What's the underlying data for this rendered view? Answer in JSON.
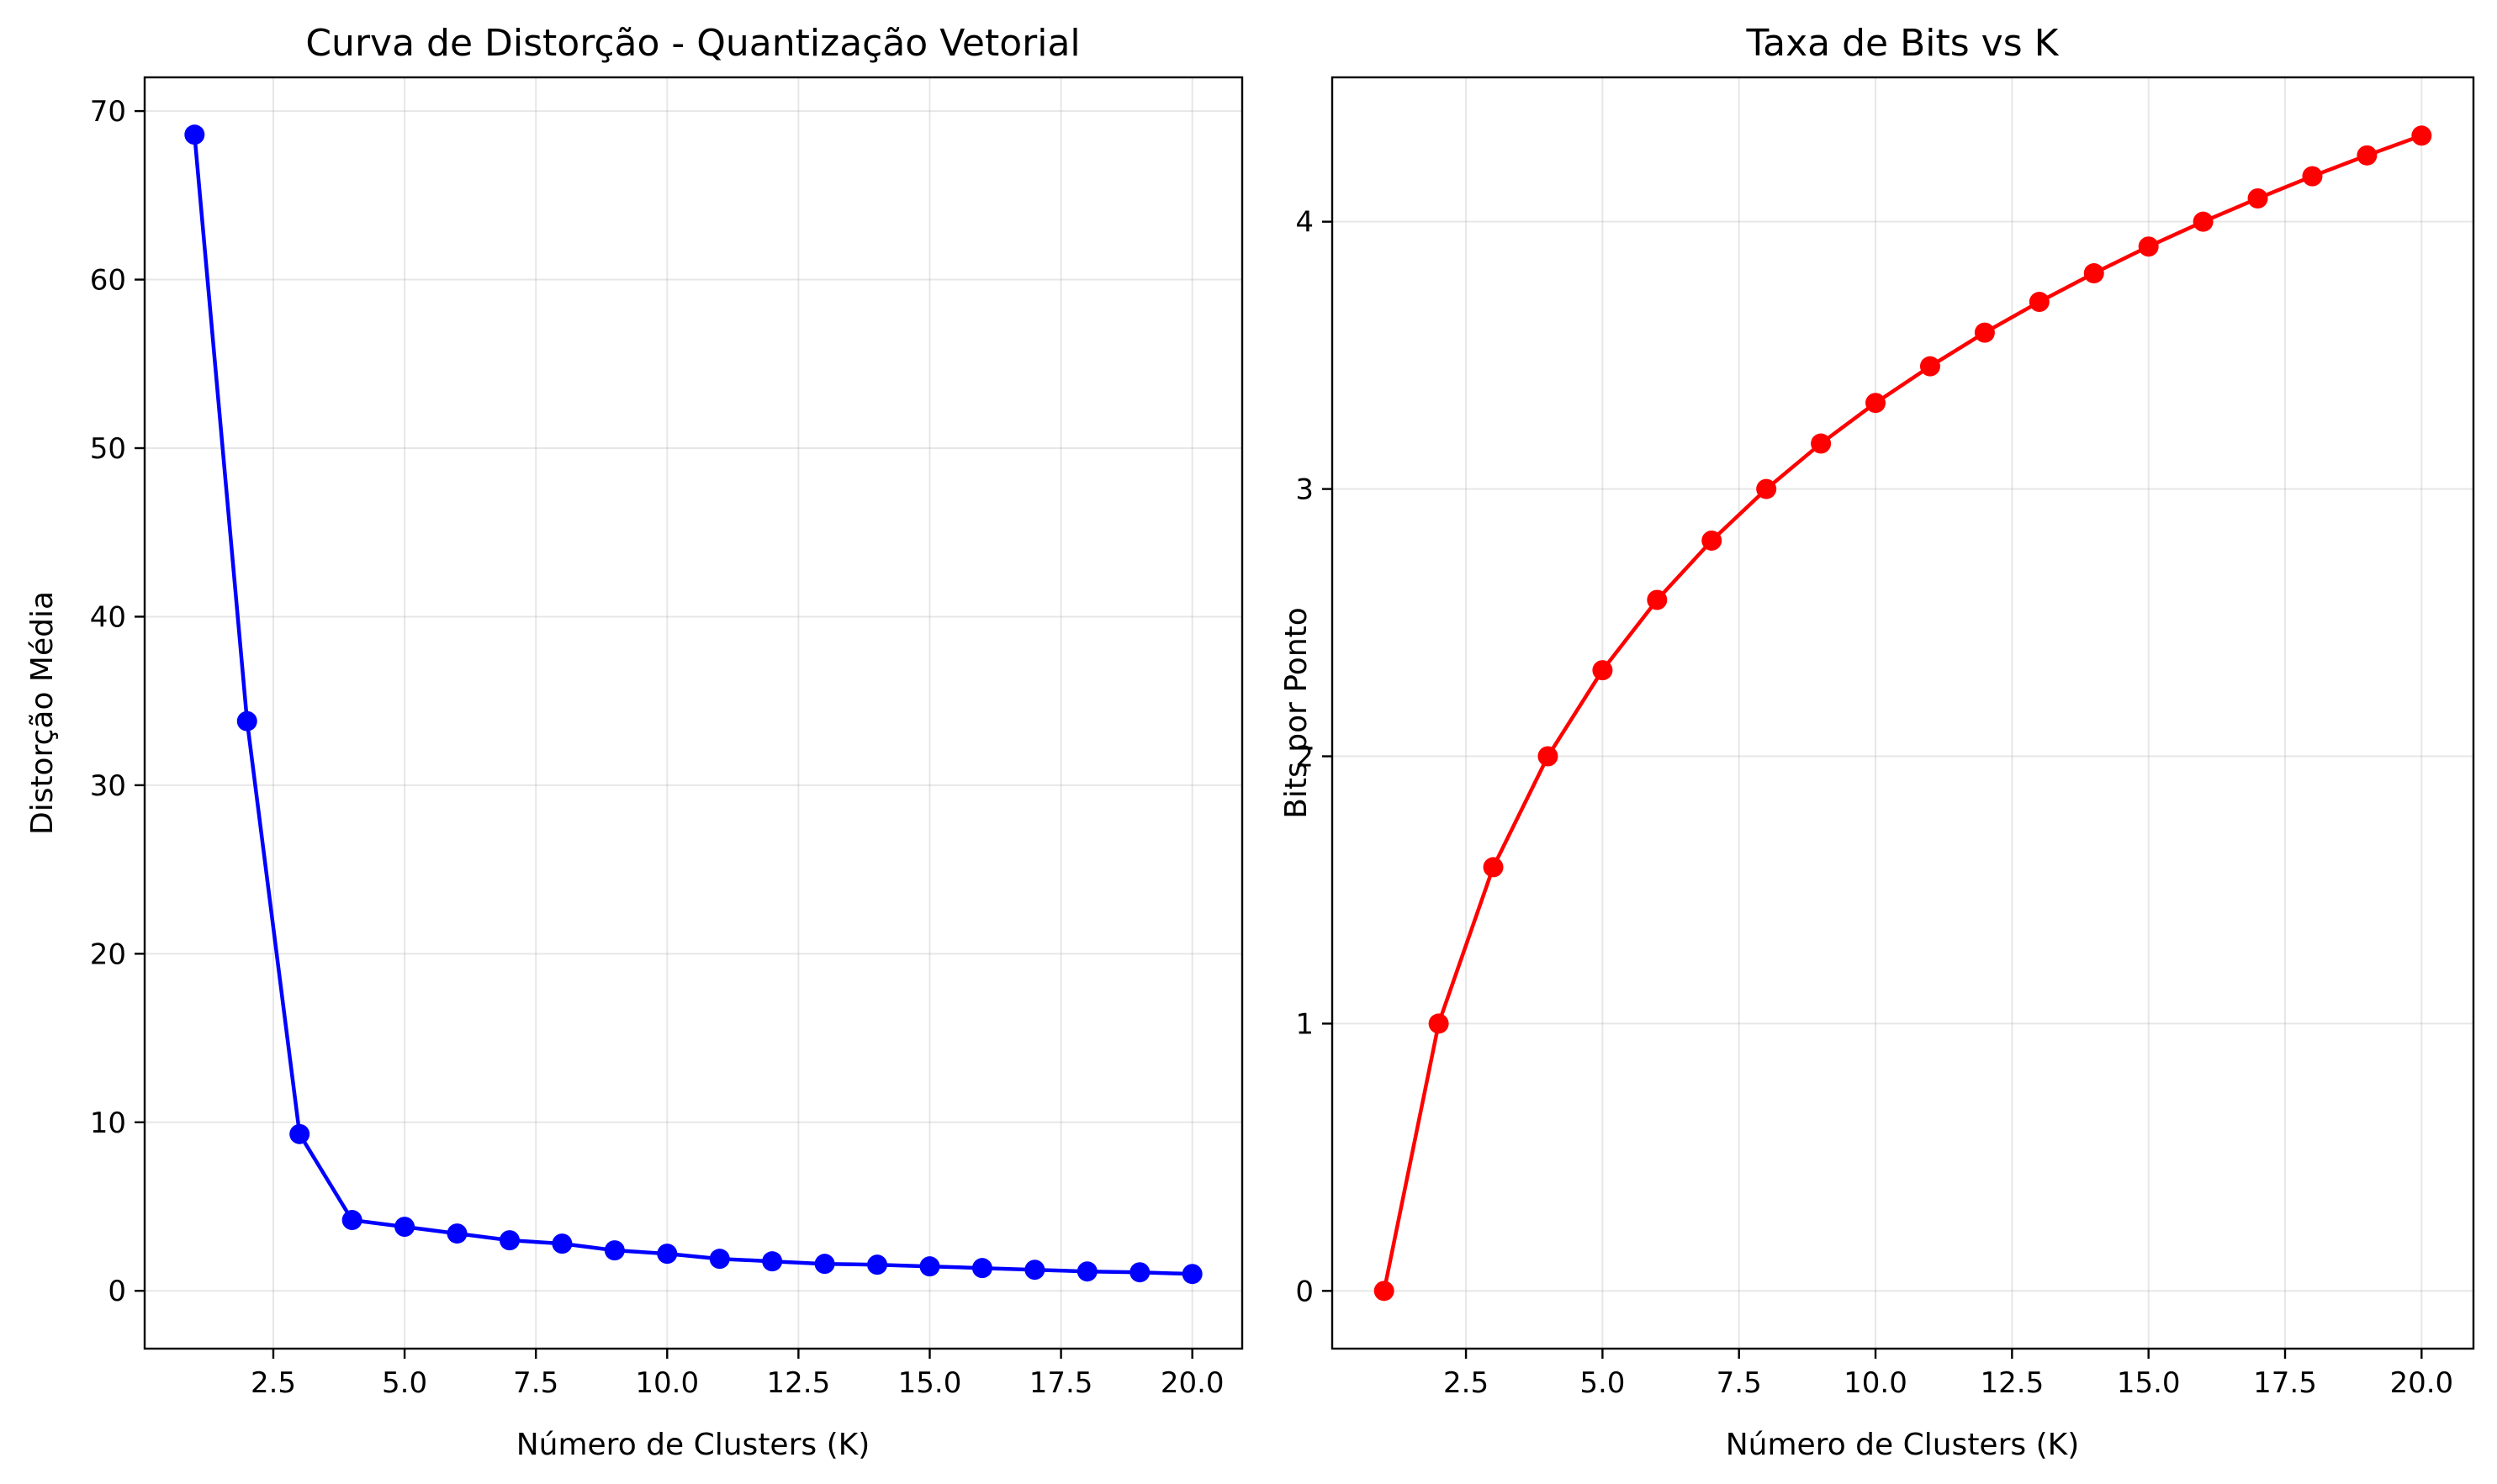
{
  "chart_data": [
    {
      "type": "line",
      "title": "Curva de Distorção - Quantização Vetorial",
      "xlabel": "Número de Clusters (K)",
      "ylabel": "Distorção Média",
      "xlim": [
        0.05,
        20.95
      ],
      "ylim": [
        -3.43,
        72.0
      ],
      "grid": true,
      "x_ticks": [
        2.5,
        5.0,
        7.5,
        10.0,
        12.5,
        15.0,
        17.5,
        20.0
      ],
      "x_tick_labels": [
        "2.5",
        "5.0",
        "7.5",
        "10.0",
        "12.5",
        "15.0",
        "17.5",
        "20.0"
      ],
      "y_ticks": [
        0,
        10,
        20,
        30,
        40,
        50,
        60,
        70
      ],
      "y_tick_labels": [
        "0",
        "10",
        "20",
        "30",
        "40",
        "50",
        "60",
        "70"
      ],
      "series": [
        {
          "color": "#0000ff",
          "marker": "circle",
          "x": [
            1,
            2,
            3,
            4,
            5,
            6,
            7,
            8,
            9,
            10,
            11,
            12,
            13,
            14,
            15,
            16,
            17,
            18,
            19,
            20
          ],
          "y": [
            68.6,
            33.8,
            9.3,
            4.2,
            3.8,
            3.4,
            3.0,
            2.8,
            2.4,
            2.2,
            1.9,
            1.75,
            1.6,
            1.55,
            1.45,
            1.35,
            1.25,
            1.15,
            1.1,
            1.0
          ]
        }
      ]
    },
    {
      "type": "line",
      "title": "Taxa de Bits vs K",
      "xlabel": "Número de Clusters (K)",
      "ylabel": "Bits por Ponto",
      "xlim": [
        0.05,
        20.95
      ],
      "ylim": [
        -0.216,
        4.54
      ],
      "grid": true,
      "x_ticks": [
        2.5,
        5.0,
        7.5,
        10.0,
        12.5,
        15.0,
        17.5,
        20.0
      ],
      "x_tick_labels": [
        "2.5",
        "5.0",
        "7.5",
        "10.0",
        "12.5",
        "15.0",
        "17.5",
        "20.0"
      ],
      "y_ticks": [
        0,
        1,
        2,
        3,
        4
      ],
      "y_tick_labels": [
        "0",
        "1",
        "2",
        "3",
        "4"
      ],
      "series": [
        {
          "color": "#ff0000",
          "marker": "circle",
          "x": [
            1,
            2,
            3,
            4,
            5,
            6,
            7,
            8,
            9,
            10,
            11,
            12,
            13,
            14,
            15,
            16,
            17,
            18,
            19,
            20
          ],
          "y": [
            0,
            1,
            1.585,
            2,
            2.322,
            2.585,
            2.807,
            3,
            3.17,
            3.322,
            3.459,
            3.585,
            3.7,
            3.807,
            3.907,
            4,
            4.087,
            4.17,
            4.248,
            4.322
          ]
        }
      ]
    }
  ]
}
